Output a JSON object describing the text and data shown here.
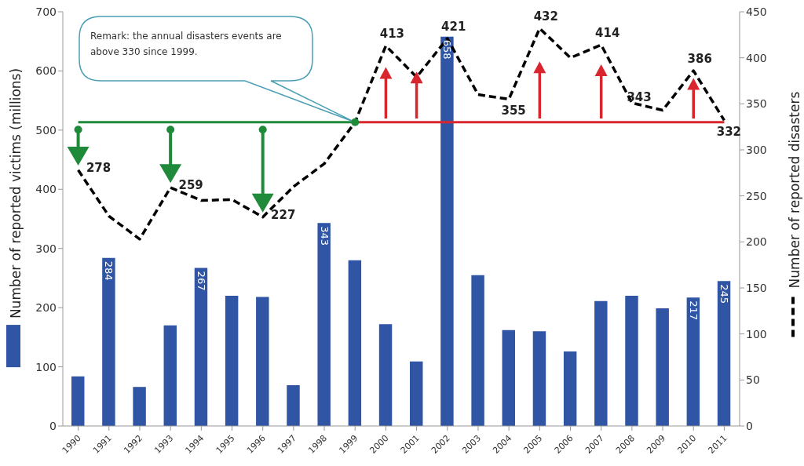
{
  "chart_data": {
    "type": "bar",
    "ylabel": "Number of reported victims (millions)",
    "y2label": "Number of reported disasters",
    "categories": [
      "1990",
      "1991",
      "1992",
      "1993",
      "1994",
      "1995",
      "1996",
      "1997",
      "1998",
      "1999",
      "2000",
      "2001",
      "2002",
      "2003",
      "2004",
      "2005",
      "2006",
      "2007",
      "2008",
      "2009",
      "2010",
      "2011"
    ],
    "series": [
      {
        "color": "#2f55a4",
        "values": [
          84,
          284,
          66,
          170,
          267,
          220,
          218,
          69,
          343,
          280,
          172,
          109,
          658,
          255,
          162,
          160,
          126,
          211,
          220,
          199,
          217,
          245
        ],
        "value_labels": [
          null,
          "284",
          null,
          null,
          "267",
          null,
          null,
          null,
          "343",
          null,
          null,
          null,
          "658",
          null,
          null,
          null,
          null,
          null,
          null,
          null,
          "217",
          "245"
        ]
      },
      {
        "type": "line",
        "axis": "y2",
        "color": "#000000",
        "line_style": "dashed",
        "marker": "none",
        "values": [
          278,
          228,
          203,
          259,
          245,
          246,
          227,
          260,
          285,
          330,
          413,
          379,
          421,
          360,
          355,
          432,
          400,
          414,
          351,
          343,
          386,
          332
        ],
        "value_labels": [
          "278",
          null,
          null,
          "259",
          null,
          null,
          "227",
          null,
          null,
          null,
          "413",
          null,
          "421",
          null,
          "355",
          "432",
          null,
          "414",
          null,
          "343",
          "386",
          "332"
        ]
      },
      {
        "type": "line",
        "axis": "y2",
        "color": "#1e8a3a",
        "line_style": "solid",
        "marker": "none",
        "values": [
          330,
          330,
          330,
          330,
          330,
          330,
          330,
          330,
          330,
          330,
          null,
          null,
          null,
          null,
          null,
          null,
          null,
          null,
          null,
          null,
          null,
          null
        ]
      },
      {
        "type": "line",
        "axis": "y2",
        "color": "#d9262e",
        "line_style": "solid",
        "marker": "none",
        "values": [
          null,
          null,
          null,
          null,
          null,
          null,
          null,
          null,
          null,
          330,
          330,
          330,
          330,
          330,
          330,
          330,
          330,
          330,
          330,
          330,
          330,
          330
        ]
      }
    ],
    "ylim": [
      0,
      700
    ],
    "yticks": [
      0,
      100,
      200,
      300,
      400,
      500,
      600,
      700
    ],
    "y2lim": [
      0,
      450
    ],
    "y2ticks": [
      0,
      50,
      100,
      150,
      200,
      250,
      300,
      350,
      400,
      450
    ],
    "grid": false,
    "legend": false,
    "annotations": [
      "Remark: the annual disasters events are above 330 since 1999."
    ]
  }
}
